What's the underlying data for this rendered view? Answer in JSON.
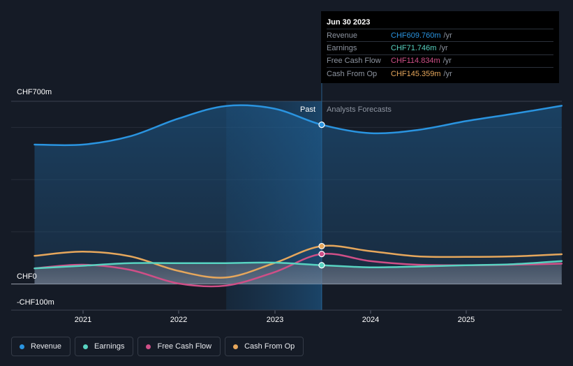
{
  "colors": {
    "background": "#151b26",
    "revenue": "#2a94e0",
    "earnings": "#58d3c1",
    "fcf": "#cf4f87",
    "cfo": "#e6a75c"
  },
  "chart_data": {
    "type": "line",
    "y_axis": {
      "top_label": "CHF700m",
      "zero_label": "CHF0",
      "bottom_label": "-CHF100m",
      "ylim": [
        -100,
        700
      ]
    },
    "x_axis": {
      "ticks": [
        "2021",
        "2022",
        "2023",
        "2024",
        "2025"
      ]
    },
    "grid": true,
    "divider_labels": {
      "past": "Past",
      "forecast": "Analysts Forecasts"
    },
    "series": [
      {
        "name": "Revenue",
        "key": "revenue",
        "points": [
          [
            "2020-06-30",
            534
          ],
          [
            "2020-12-31",
            534
          ],
          [
            "2021-06-30",
            566
          ],
          [
            "2021-12-31",
            634
          ],
          [
            "2022-06-30",
            682
          ],
          [
            "2022-12-31",
            672
          ],
          [
            "2023-06-30",
            610
          ],
          [
            "2023-12-31",
            578
          ],
          [
            "2024-06-30",
            590
          ],
          [
            "2024-12-31",
            624
          ],
          [
            "2025-06-30",
            652
          ],
          [
            "2025-12-31",
            683
          ]
        ]
      },
      {
        "name": "Earnings",
        "key": "earnings",
        "points": [
          [
            "2020-06-30",
            60
          ],
          [
            "2020-12-31",
            70
          ],
          [
            "2021-06-30",
            80
          ],
          [
            "2021-12-31",
            80
          ],
          [
            "2022-06-30",
            80
          ],
          [
            "2022-12-31",
            82
          ],
          [
            "2023-06-30",
            72
          ],
          [
            "2023-12-31",
            64
          ],
          [
            "2024-06-30",
            67
          ],
          [
            "2024-12-31",
            72
          ],
          [
            "2025-06-30",
            76
          ],
          [
            "2025-12-31",
            88
          ]
        ]
      },
      {
        "name": "Free Cash Flow",
        "key": "fcf",
        "points": [
          [
            "2020-06-30",
            60
          ],
          [
            "2020-12-31",
            74
          ],
          [
            "2021-06-30",
            54
          ],
          [
            "2021-12-31",
            2
          ],
          [
            "2022-06-30",
            -6
          ],
          [
            "2022-12-31",
            45
          ],
          [
            "2023-06-30",
            115
          ],
          [
            "2023-12-31",
            88
          ],
          [
            "2024-06-30",
            74
          ],
          [
            "2024-12-31",
            72
          ],
          [
            "2025-06-30",
            74
          ],
          [
            "2025-12-31",
            78
          ]
        ]
      },
      {
        "name": "Cash From Op",
        "key": "cfo",
        "points": [
          [
            "2020-06-30",
            108
          ],
          [
            "2020-12-31",
            124
          ],
          [
            "2021-06-30",
            106
          ],
          [
            "2021-12-31",
            50
          ],
          [
            "2022-06-30",
            25
          ],
          [
            "2022-12-31",
            80
          ],
          [
            "2023-06-30",
            145
          ],
          [
            "2023-12-31",
            126
          ],
          [
            "2024-06-30",
            106
          ],
          [
            "2024-12-31",
            104
          ],
          [
            "2025-06-30",
            106
          ],
          [
            "2025-12-31",
            114
          ]
        ]
      }
    ]
  },
  "tooltip": {
    "date": "Jun 30 2023",
    "rows": [
      {
        "name": "Revenue",
        "value": "CHF609.760m",
        "unit": "/yr",
        "key": "revenue"
      },
      {
        "name": "Earnings",
        "value": "CHF71.746m",
        "unit": "/yr",
        "key": "earnings"
      },
      {
        "name": "Free Cash Flow",
        "value": "CHF114.834m",
        "unit": "/yr",
        "key": "fcf"
      },
      {
        "name": "Cash From Op",
        "value": "CHF145.359m",
        "unit": "/yr",
        "key": "cfo"
      }
    ]
  },
  "legend": [
    {
      "label": "Revenue",
      "key": "revenue"
    },
    {
      "label": "Earnings",
      "key": "earnings"
    },
    {
      "label": "Free Cash Flow",
      "key": "fcf"
    },
    {
      "label": "Cash From Op",
      "key": "cfo"
    }
  ]
}
